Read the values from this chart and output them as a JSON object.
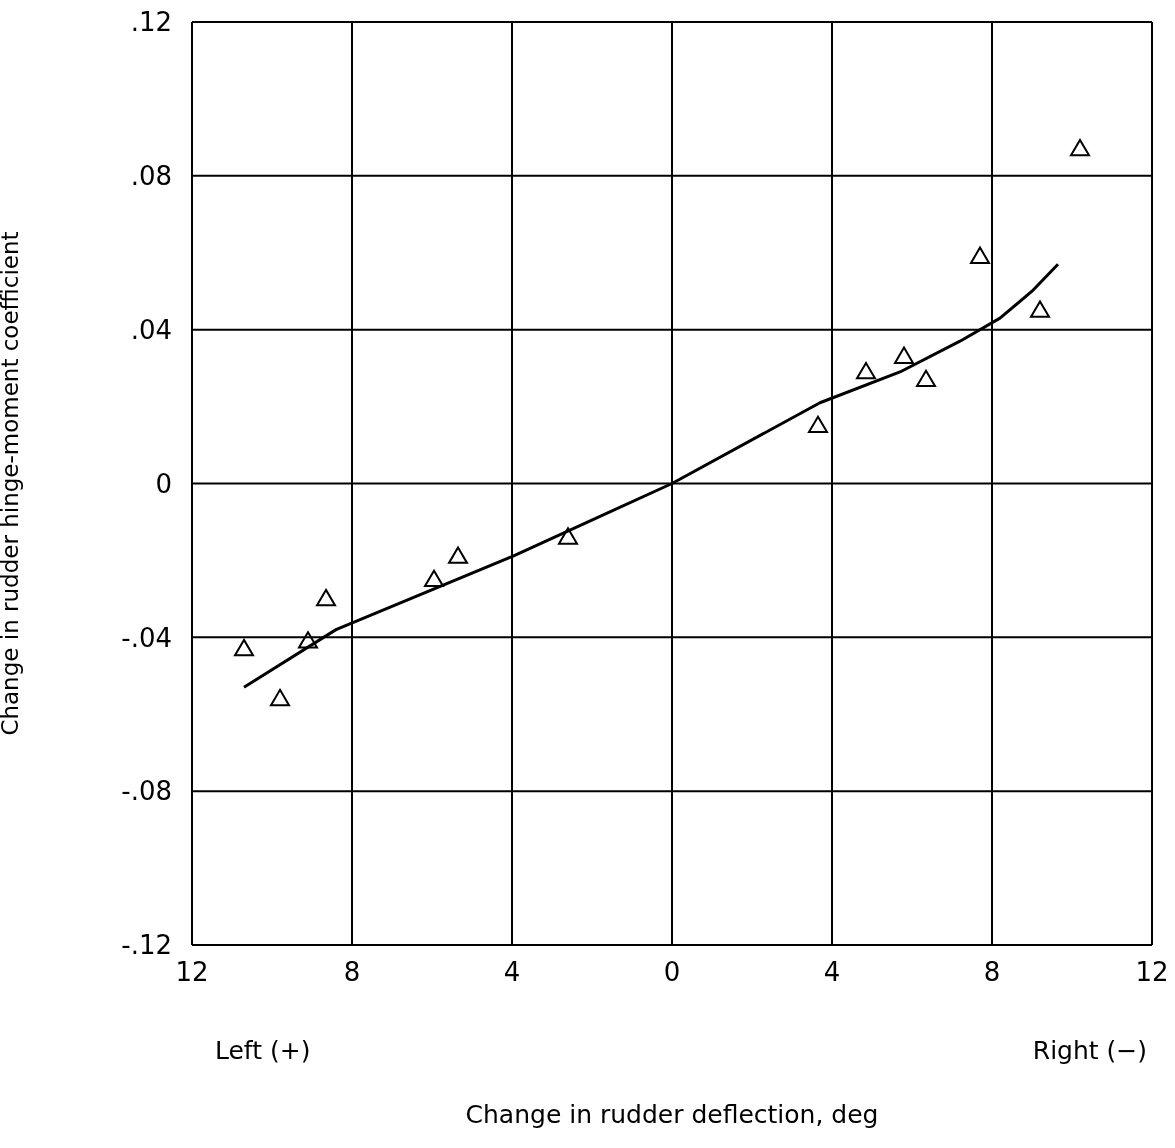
{
  "chart_data": {
    "type": "scatter",
    "xlabel": "Change in rudder  deflection, deg",
    "ylabel": "Change in rudder hinge-moment coefficient",
    "annotations": [
      "Left (+)",
      "Right (−)"
    ],
    "xlim": [
      12,
      -12
    ],
    "xticks": [
      12,
      8,
      4,
      0,
      {
        "value": -4,
        "label": "4"
      },
      {
        "value": -8,
        "label": "8"
      },
      {
        "value": -12,
        "label": "12"
      }
    ],
    "ylim": [
      -0.12,
      0.12
    ],
    "yticks": [
      {
        "value": -0.12,
        "label": "-.12"
      },
      {
        "value": -0.08,
        "label": "-.08"
      },
      {
        "value": -0.04,
        "label": "-.04"
      },
      0,
      {
        "value": 0.04,
        "label": ".04"
      },
      {
        "value": 0.08,
        "label": ".08"
      },
      {
        "value": 0.12,
        "label": ".12"
      }
    ],
    "grid": true,
    "series": [
      {
        "marker": "triangle",
        "color": "#000000",
        "x": [
          10.7,
          9.8,
          9.1,
          8.65,
          5.95,
          5.35,
          2.6,
          -3.65,
          -4.85,
          -5.8,
          -6.35,
          -7.7,
          -9.2,
          -10.2
        ],
        "values": [
          -0.043,
          -0.056,
          -0.041,
          -0.03,
          -0.025,
          -0.019,
          -0.014,
          0.015,
          0.029,
          0.033,
          0.027,
          0.059,
          0.045,
          0.087
        ]
      },
      {
        "type": "line",
        "marker": "none",
        "color": "#000000",
        "x": [
          10.7,
          8.4,
          4,
          0,
          -3.7,
          -5.7,
          -7.2,
          -8.2,
          -9.0,
          -9.65
        ],
        "values": [
          -0.053,
          -0.038,
          -0.019,
          0,
          0.021,
          0.029,
          0.037,
          0.043,
          0.05,
          0.057
        ]
      }
    ]
  }
}
